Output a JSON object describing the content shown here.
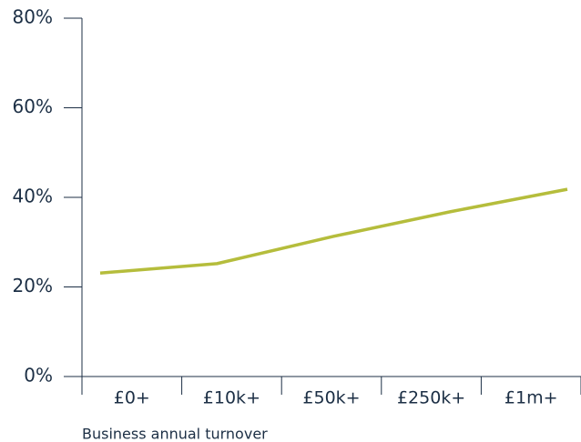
{
  "chart_data": {
    "type": "line",
    "x_label": "Business annual turnover",
    "categories": [
      "£0+",
      "£10k+",
      "£50k+",
      "£250k+",
      "£1m+"
    ],
    "series": [
      {
        "name": null,
        "color": "#b5bd3c",
        "values": [
          23.1,
          25.2,
          31.3,
          36.8,
          41.8
        ]
      }
    ],
    "ylim": [
      0,
      80
    ],
    "yticks": [
      {
        "value": 0,
        "label": "0%"
      },
      {
        "value": 20,
        "label": "20%"
      },
      {
        "value": 40,
        "label": "40%"
      },
      {
        "value": 60,
        "label": "60%"
      },
      {
        "value": 80,
        "label": "80%"
      }
    ],
    "grid": false
  }
}
